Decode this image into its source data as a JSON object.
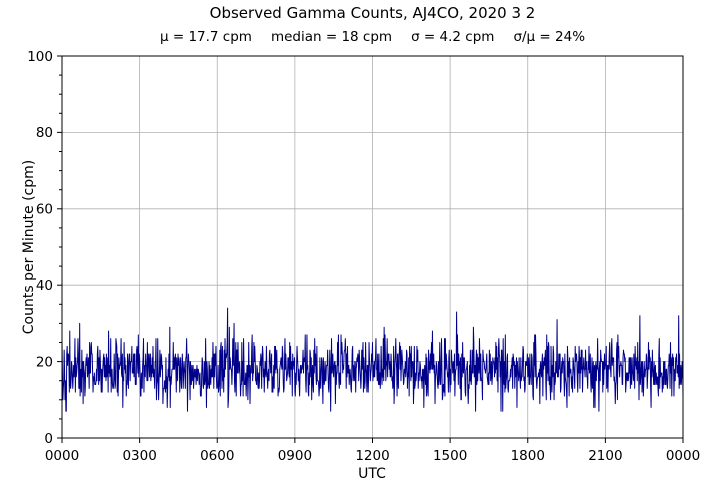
{
  "chart_data": {
    "type": "line",
    "title": "Observed Gamma Counts, AJ4CO, 2020 3 2",
    "subtitle_stats": [
      "μ = 17.7 cpm",
      "median = 18 cpm",
      "σ = 4.2 cpm",
      "σ/μ = 24%"
    ],
    "stats": {
      "mean_cpm": 17.7,
      "median_cpm": 18,
      "sigma_cpm": 4.2,
      "sigma_over_mean_percent": 24
    },
    "xlabel": "UTC",
    "ylabel": "Counts per Minute (cpm)",
    "x_tick_labels": [
      "0000",
      "0300",
      "0600",
      "0900",
      "1200",
      "1500",
      "1800",
      "2100",
      "0000"
    ],
    "x_tick_minutes": [
      0,
      180,
      360,
      540,
      720,
      900,
      1080,
      1260,
      1440
    ],
    "xlim_minutes": [
      0,
      1440
    ],
    "y_ticks": [
      0,
      20,
      40,
      60,
      80,
      100
    ],
    "y_minor_step": 5,
    "ylim": [
      0,
      100
    ],
    "grid": true,
    "legend": "none",
    "series": [
      {
        "name": "observed gamma counts",
        "color": "#00008B",
        "n_points": 1441,
        "sample_interval_minutes": 1,
        "distribution": {
          "mean": 17.7,
          "sigma": 4.2,
          "min": 7,
          "max": 34,
          "integer": true,
          "seed": 42
        },
        "notable_points": [
          {
            "minute": 0,
            "value": 25
          },
          {
            "minute": 10,
            "value": 7
          },
          {
            "minute": 41,
            "value": 30
          },
          {
            "minute": 384,
            "value": 34
          },
          {
            "minute": 915,
            "value": 33
          },
          {
            "minute": 1148,
            "value": 31
          },
          {
            "minute": 1430,
            "value": 32
          }
        ]
      }
    ],
    "colors": {
      "line": "#00008B",
      "grid": "#b0b0b0",
      "axis": "#000000",
      "text": "#000000",
      "background": "#ffffff"
    }
  }
}
